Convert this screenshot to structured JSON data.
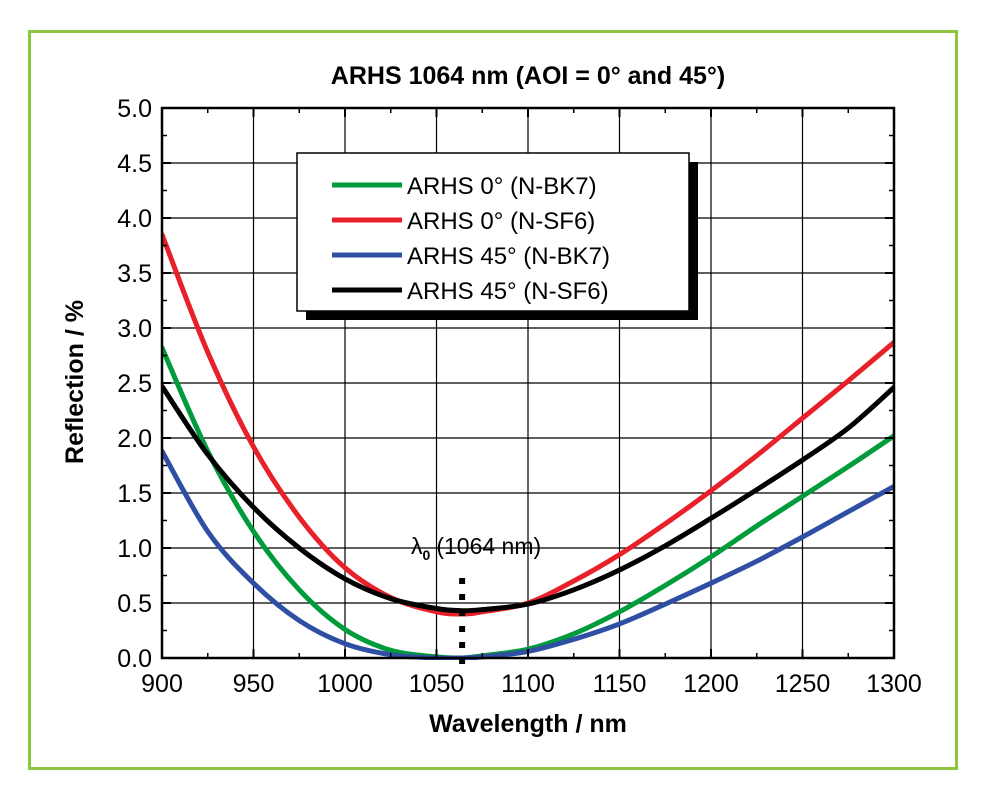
{
  "chart_data": {
    "type": "line",
    "title": "ARHS 1064 nm (AOI = 0° and 45°)",
    "xlabel": "Wavelength / nm",
    "ylabel": "Reflection / %",
    "xlim": [
      900,
      1300
    ],
    "ylim": [
      0,
      5.0
    ],
    "xticks": [
      "900",
      "950",
      "1000",
      "1050",
      "1100",
      "1150",
      "1200",
      "1250",
      "1300"
    ],
    "yticks": [
      "0.0",
      "0.5",
      "1.0",
      "1.5",
      "2.0",
      "2.5",
      "3.0",
      "3.5",
      "4.0",
      "4.5",
      "5.0"
    ],
    "grid": true,
    "legend_position": "top-center",
    "annotation": {
      "symbol": "λ",
      "subscript": "0",
      "text": "(1064 nm)",
      "x": 1064
    },
    "series": [
      {
        "name": "ARHS 0° (N-BK7)",
        "color": "#009b3a",
        "points": [
          [
            900,
            2.82
          ],
          [
            925,
            1.88
          ],
          [
            950,
            1.15
          ],
          [
            975,
            0.62
          ],
          [
            1000,
            0.26
          ],
          [
            1025,
            0.07
          ],
          [
            1050,
            0.01
          ],
          [
            1064,
            0.0
          ],
          [
            1075,
            0.02
          ],
          [
            1100,
            0.08
          ],
          [
            1125,
            0.22
          ],
          [
            1150,
            0.42
          ],
          [
            1175,
            0.66
          ],
          [
            1200,
            0.92
          ],
          [
            1225,
            1.2
          ],
          [
            1250,
            1.47
          ],
          [
            1275,
            1.74
          ],
          [
            1300,
            2.02
          ]
        ]
      },
      {
        "name": "ARHS 0° (N-SF6)",
        "color": "#e8202a",
        "points": [
          [
            900,
            3.85
          ],
          [
            925,
            2.78
          ],
          [
            950,
            1.92
          ],
          [
            975,
            1.28
          ],
          [
            1000,
            0.82
          ],
          [
            1025,
            0.55
          ],
          [
            1050,
            0.42
          ],
          [
            1064,
            0.4
          ],
          [
            1075,
            0.42
          ],
          [
            1100,
            0.5
          ],
          [
            1125,
            0.7
          ],
          [
            1150,
            0.94
          ],
          [
            1175,
            1.22
          ],
          [
            1200,
            1.52
          ],
          [
            1225,
            1.84
          ],
          [
            1250,
            2.18
          ],
          [
            1275,
            2.52
          ],
          [
            1300,
            2.87
          ]
        ]
      },
      {
        "name": "ARHS 45° (N-BK7)",
        "color": "#2e4fa3",
        "points": [
          [
            900,
            1.88
          ],
          [
            925,
            1.15
          ],
          [
            950,
            0.68
          ],
          [
            975,
            0.34
          ],
          [
            1000,
            0.13
          ],
          [
            1025,
            0.03
          ],
          [
            1050,
            0.0
          ],
          [
            1064,
            0.0
          ],
          [
            1075,
            0.01
          ],
          [
            1100,
            0.06
          ],
          [
            1125,
            0.17
          ],
          [
            1150,
            0.31
          ],
          [
            1175,
            0.49
          ],
          [
            1200,
            0.68
          ],
          [
            1225,
            0.88
          ],
          [
            1250,
            1.1
          ],
          [
            1275,
            1.33
          ],
          [
            1300,
            1.56
          ]
        ]
      },
      {
        "name": "ARHS 45° (N-SF6)",
        "color": "#000000",
        "points": [
          [
            900,
            2.47
          ],
          [
            925,
            1.85
          ],
          [
            950,
            1.37
          ],
          [
            975,
            1.0
          ],
          [
            1000,
            0.72
          ],
          [
            1025,
            0.54
          ],
          [
            1050,
            0.45
          ],
          [
            1064,
            0.43
          ],
          [
            1075,
            0.44
          ],
          [
            1100,
            0.49
          ],
          [
            1125,
            0.62
          ],
          [
            1150,
            0.8
          ],
          [
            1175,
            1.02
          ],
          [
            1200,
            1.27
          ],
          [
            1225,
            1.53
          ],
          [
            1250,
            1.8
          ],
          [
            1275,
            2.09
          ],
          [
            1300,
            2.46
          ]
        ]
      }
    ]
  }
}
